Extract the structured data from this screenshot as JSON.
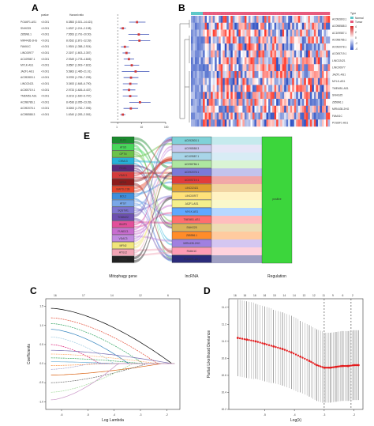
{
  "figure": {
    "panel_labels": [
      "A",
      "B",
      "C",
      "D",
      "E"
    ]
  },
  "panelA": {
    "col_headers": [
      "pvalue",
      "Hazard ratio"
    ],
    "genes": [
      "POU6F1-AS1",
      "SNHG25",
      "Z85996.1",
      "MIR4435-2HG",
      "FAM41C",
      "LINC00977",
      "AC109587.1",
      "MYLK-AS1",
      "JAZF1-AS1",
      "AC092803.1",
      "LINC02421",
      "AC005719.1",
      "TMEM51-AS1",
      "AC098786.1",
      "AC092078.1",
      "AC098588.3"
    ],
    "pvalues": [
      "<0.001",
      "<0.001",
      "<0.001",
      "<0.001",
      "<0.001",
      "<0.001",
      "<0.001",
      "<0.001",
      "<0.001",
      "<0.001",
      "<0.001",
      "<0.001",
      "<0.001",
      "<0.001",
      "<0.001",
      "<0.001"
    ],
    "hr_text": [
      "6.3853 (3.021–14.421)",
      "1.6337 (1.214–2.198)",
      "7.5653 (2.791–20.50)",
      "8.0532 (2.871–22.59)",
      "1.9924 (1.358–2.924)",
      "2.3197 (1.603–3.357)",
      "2.9349 (1.778–4.845)",
      "3.8587 (1.903–7.822)",
      "5.5863 (1.485–21.01)",
      "3.5783 (1.755–7.295)",
      "3.3453 (1.648–6.790)",
      "2.9733 (1.626–5.437)",
      "3.3213 (1.630–6.767)",
      "8.4536 (3.055–23.39)",
      "3.5263 (1.752–7.096)",
      "1.6340 (1.283–2.081)"
    ],
    "xaxis_ticks": [
      "1",
      "10",
      "100"
    ],
    "xlabel": "Hazard ratio",
    "forest_data": {
      "type": "forest",
      "hr": [
        6.39,
        1.63,
        7.57,
        8.05,
        1.99,
        2.32,
        2.93,
        3.86,
        5.59,
        3.58,
        3.35,
        2.97,
        3.32,
        8.45,
        3.53,
        1.63
      ],
      "lower": [
        3.02,
        1.21,
        2.79,
        2.87,
        1.36,
        1.6,
        1.78,
        1.9,
        1.49,
        1.76,
        1.65,
        1.63,
        1.63,
        3.06,
        1.75,
        1.28
      ],
      "upper": [
        14.4,
        2.2,
        20.5,
        22.6,
        2.92,
        3.36,
        4.85,
        7.82,
        21.0,
        7.3,
        6.79,
        5.44,
        6.77,
        23.4,
        7.1,
        2.08
      ],
      "xlim": [
        0.5,
        100
      ],
      "log_scale": true
    }
  },
  "panelB": {
    "legend_title": "Type",
    "legend_items": [
      "Normal",
      "Tumor"
    ],
    "legend_scale": [
      "4",
      "2",
      "0",
      "-2",
      "-4"
    ],
    "rows": [
      "AC092803.1",
      "AC098588.3",
      "AC109587.1",
      "AC098786.1",
      "AC092078.1",
      "AC005719.1",
      "LINC02421",
      "LINC00977",
      "JAZF1-AS1",
      "MYLK-AS1",
      "TMEM51-AS1",
      "SNHG25",
      "Z85996.1",
      "MIR4435-2HG",
      "FAM41C",
      "POU6F1-AS1"
    ],
    "colors": {
      "low": "#2c4fc2",
      "mid": "#ffffff",
      "high": "#d62728",
      "normal": "#5ec8c8",
      "tumor": "#e75a7c"
    }
  },
  "panelE": {
    "axis_labels": [
      "Mitophagy gene",
      "lncRNA",
      "Regulation"
    ],
    "genes": [
      "ULK1",
      "ATG5",
      "OPTN",
      "CHML3",
      "PINK1",
      "VDAC1",
      "MFN1",
      "MAP1LC3B",
      "BCL2",
      "ATG7",
      "SQSTM1",
      "TOMM22",
      "BNIP3",
      "FUNDC1",
      "VDAC3",
      "MFN2",
      "ATG12",
      "PRKN"
    ],
    "gene_colors": [
      "#1a8c2e",
      "#48d65a",
      "#6cc14a",
      "#26b1d8",
      "#5a2a7a",
      "#d43b3b",
      "#8c1b1b",
      "#e5462c",
      "#3e8fdb",
      "#79a7e7",
      "#7d74d0",
      "#6c4fb0",
      "#e24f9a",
      "#c76dcf",
      "#c08ae0",
      "#f0e57a",
      "#f2a5b5",
      "#222222"
    ],
    "lncrnas": [
      "AC092803.1",
      "AC098588.3",
      "AC109587.1",
      "AC098786.1",
      "AC092078.1",
      "AC005719.1",
      "LINC02421",
      "LINC00977",
      "JAZF1-AS1",
      "MYLK-AS1",
      "TMEM51-AS1",
      "SNHG25",
      "Z85996.1",
      "MIR4435-2HG",
      "FAM41C",
      "POU6F1-AS1"
    ],
    "lnc_colors": [
      "#7fd1d8",
      "#c8c8ee",
      "#a8d5e8",
      "#aee6a0",
      "#7a7ad8",
      "#e13b3b",
      "#e0a030",
      "#ffe27a",
      "#f4ef8c",
      "#5fa8ff",
      "#ff6e6e",
      "#d8b45a",
      "#ff8c2a",
      "#a080e0",
      "#ff9cb4",
      "#2b2b7a"
    ],
    "regulation": "positive",
    "reg_color": "#3cd63c"
  },
  "panelC": {
    "top_ticks": [
      "16",
      "17",
      "14",
      "12",
      "6"
    ],
    "yaxis_ticks": [
      "1.5",
      "1.0",
      "0.5",
      "0.0",
      "-0.5",
      "-1.0"
    ],
    "xaxis_ticks": [
      "-6",
      "-5",
      "-4",
      "-3",
      "-2"
    ],
    "xlabel": "Log Lambda",
    "ylabel": "Coefficients"
  },
  "panelD": {
    "top_ticks": [
      "16",
      "16",
      "16",
      "16",
      "15",
      "14",
      "14",
      "13",
      "12",
      "11",
      "9",
      "6",
      "2"
    ],
    "yaxis_ticks": [
      "11.4",
      "11.2",
      "11.0",
      "10.8",
      "10.6",
      "10.4",
      "10.2"
    ],
    "xaxis_ticks": [
      "-5",
      "-4",
      "-3",
      "-2"
    ],
    "xlabel": "Log(λ)",
    "ylabel": "Partial Likelihood Deviance",
    "chart_data": {
      "type": "scatter",
      "x": [
        -5.9,
        -5.6,
        -5.3,
        -5.0,
        -4.7,
        -4.4,
        -4.1,
        -3.8,
        -3.5,
        -3.25,
        -3.0,
        -2.8,
        -2.6,
        -2.4,
        -2.2,
        -2.0,
        -1.85
      ],
      "y": [
        11.04,
        11.02,
        11.0,
        10.97,
        10.94,
        10.91,
        10.87,
        10.82,
        10.77,
        10.72,
        10.69,
        10.69,
        10.7,
        10.71,
        10.71,
        10.72,
        10.72
      ],
      "err": [
        0.45,
        0.45,
        0.44,
        0.44,
        0.43,
        0.43,
        0.43,
        0.42,
        0.42,
        0.42,
        0.41,
        0.41,
        0.41,
        0.41,
        0.41,
        0.41,
        0.41
      ],
      "xlim": [
        -6.2,
        -1.7
      ],
      "ylim": [
        10.2,
        11.5
      ],
      "vlines": [
        -3.0,
        -2.1
      ]
    }
  }
}
